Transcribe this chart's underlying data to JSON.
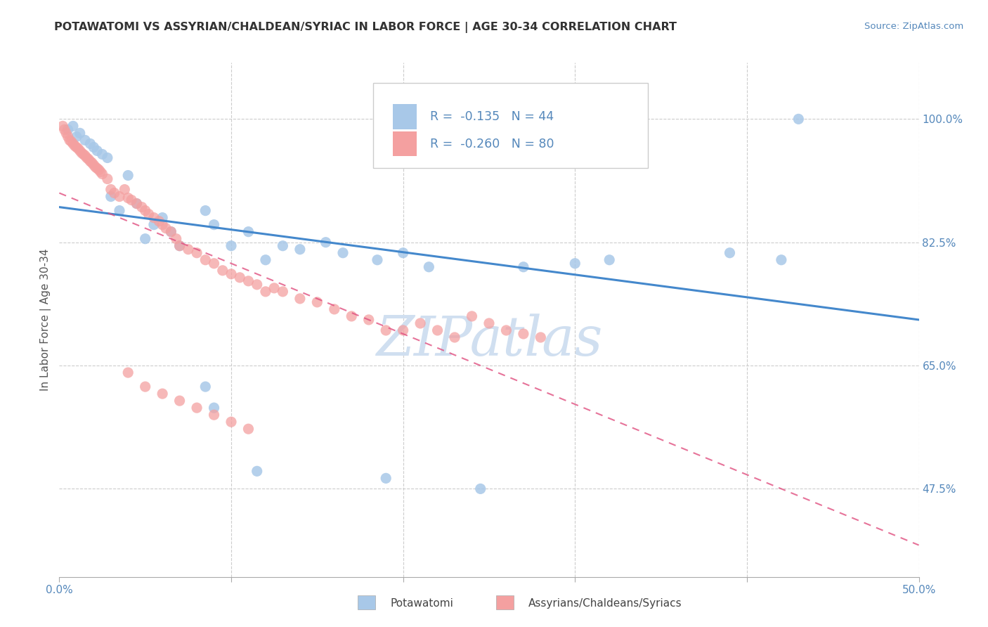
{
  "title": "POTAWATOMI VS ASSYRIAN/CHALDEAN/SYRIAC IN LABOR FORCE | AGE 30-34 CORRELATION CHART",
  "source": "Source: ZipAtlas.com",
  "ylabel": "In Labor Force | Age 30-34",
  "xlim": [
    0.0,
    0.5
  ],
  "ylim": [
    0.35,
    1.08
  ],
  "yticks": [
    0.475,
    0.65,
    0.825,
    1.0
  ],
  "yticklabels": [
    "47.5%",
    "65.0%",
    "82.5%",
    "100.0%"
  ],
  "xtick_left_label": "0.0%",
  "xtick_right_label": "50.0%",
  "legend_r_blue": "-0.135",
  "legend_n_blue": "44",
  "legend_r_pink": "-0.260",
  "legend_n_pink": "80",
  "blue_color": "#a8c8e8",
  "pink_color": "#f4a0a0",
  "trend_blue_color": "#4488cc",
  "trend_pink_color": "#e05080",
  "watermark": "ZIPatlas",
  "watermark_color": "#d0dff0",
  "legend_label_blue": "Potawatomi",
  "legend_label_pink": "Assyrians/Chaldeans/Syriacs",
  "background_color": "#ffffff",
  "grid_color": "#cccccc",
  "tick_color": "#5588bb",
  "title_color": "#333333",
  "ylabel_color": "#555555",
  "blue_trend_y0": 0.875,
  "blue_trend_y1": 0.715,
  "pink_trend_y0": 0.895,
  "pink_trend_y1": 0.395
}
